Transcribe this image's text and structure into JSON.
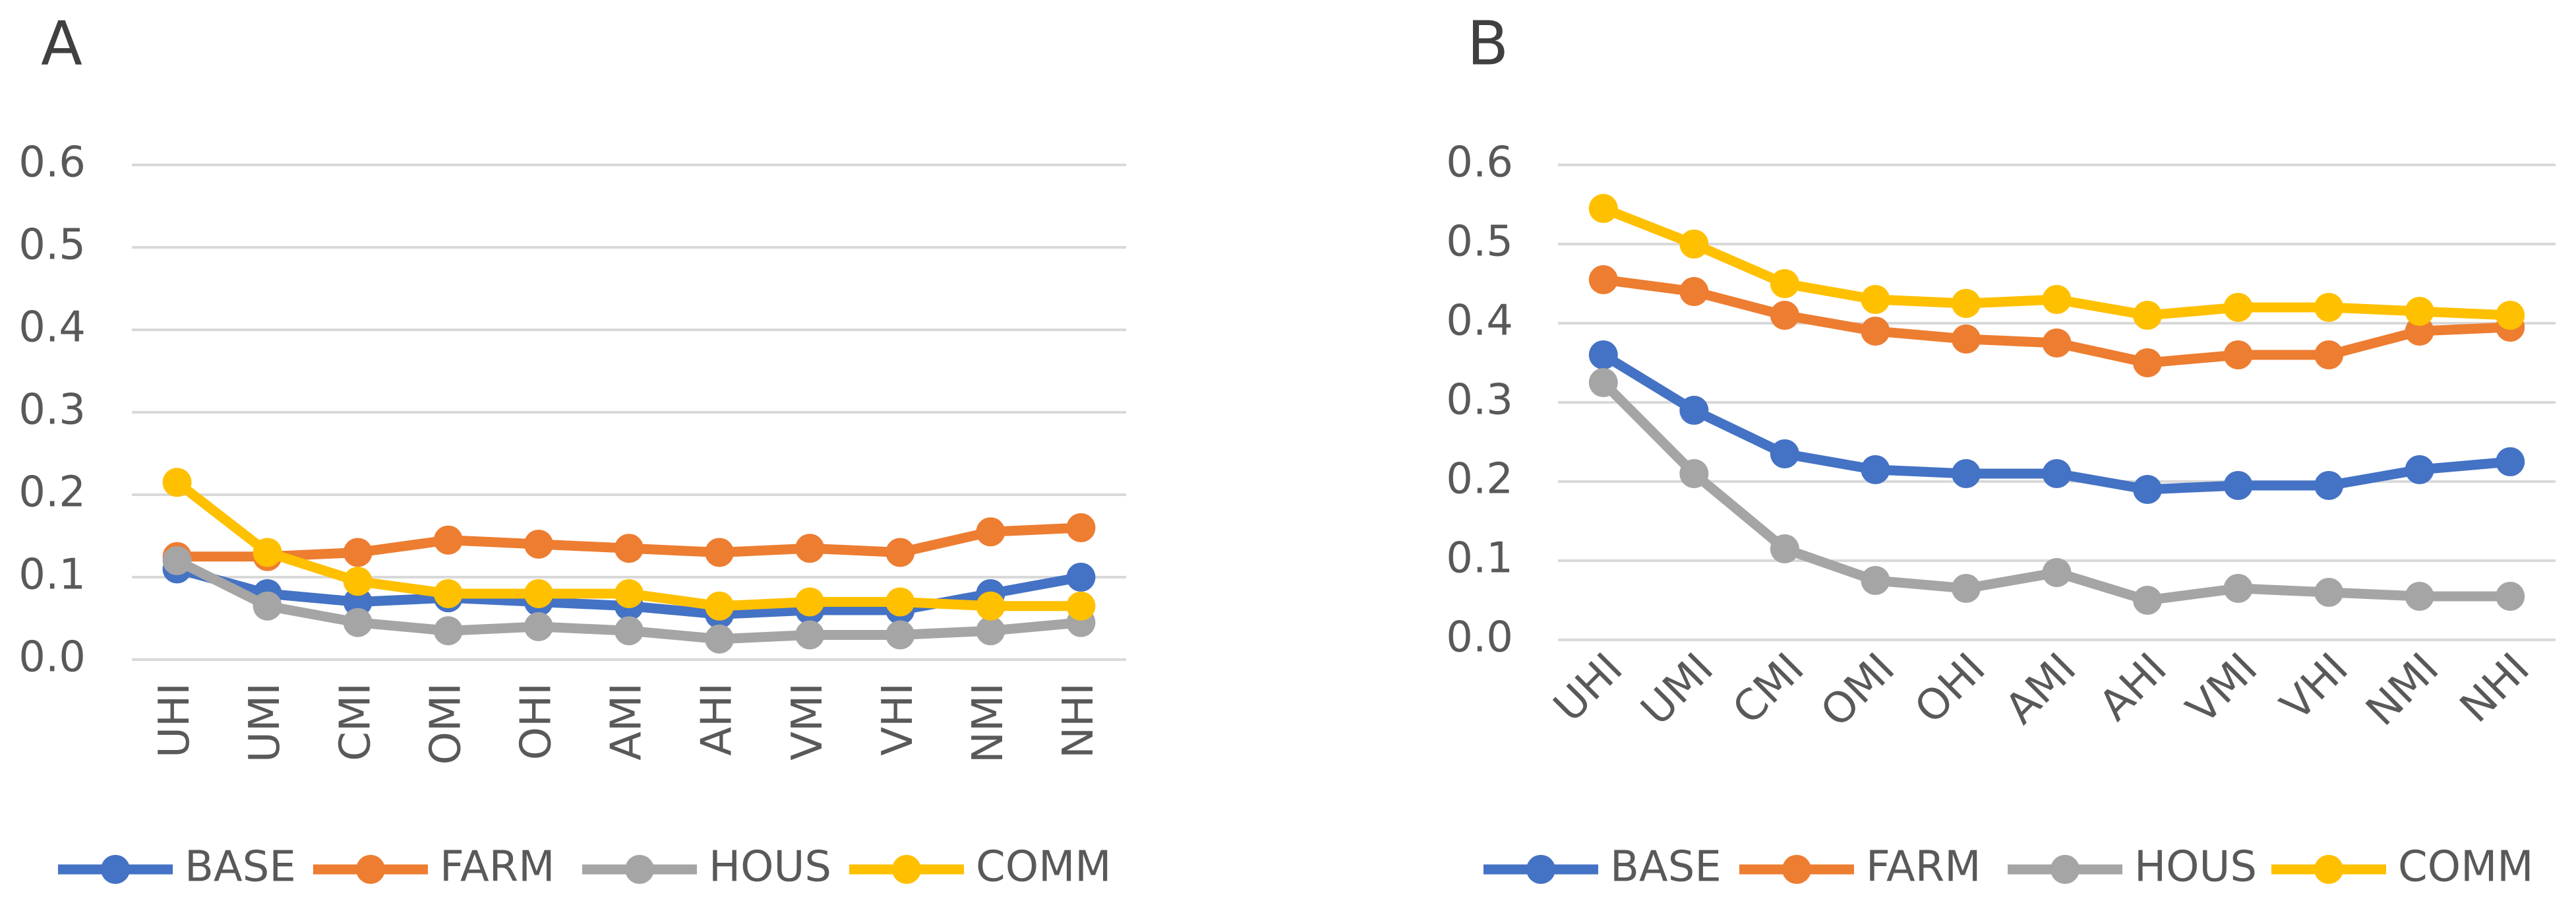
{
  "chart_data": [
    {
      "type": "line",
      "title": "A",
      "categories": [
        "UHI",
        "UMI",
        "CMI",
        "OMI",
        "OHI",
        "AMI",
        "AHI",
        "VMI",
        "VHI",
        "NMI",
        "NHI"
      ],
      "series": [
        {
          "name": "BASE",
          "color": "#4472c4",
          "values": [
            0.11,
            0.08,
            0.07,
            0.075,
            0.07,
            0.065,
            0.055,
            0.06,
            0.06,
            0.08,
            0.1
          ]
        },
        {
          "name": "FARM",
          "color": "#ed7d31",
          "values": [
            0.125,
            0.125,
            0.13,
            0.145,
            0.14,
            0.135,
            0.13,
            0.135,
            0.13,
            0.155,
            0.16
          ]
        },
        {
          "name": "HOUS",
          "color": "#a5a5a5",
          "values": [
            0.12,
            0.065,
            0.045,
            0.035,
            0.04,
            0.035,
            0.025,
            0.03,
            0.03,
            0.035,
            0.045
          ]
        },
        {
          "name": "COMM",
          "color": "#ffc000",
          "values": [
            0.215,
            0.13,
            0.095,
            0.08,
            0.08,
            0.08,
            0.065,
            0.07,
            0.07,
            0.065,
            0.065
          ]
        }
      ],
      "ylim": [
        0,
        0.6
      ],
      "yticks": [
        {
          "value": 0,
          "label": "0.0"
        },
        0.1,
        0.2,
        0.3,
        0.4,
        0.5,
        0.6
      ],
      "grid": true,
      "legend": "bottom"
    },
    {
      "type": "line",
      "title": "B",
      "categories": [
        "UHI",
        "UMI",
        "CMI",
        "OMI",
        "OHI",
        "AMI",
        "AHI",
        "VMI",
        "VHI",
        "NMI",
        "NHI"
      ],
      "series": [
        {
          "name": "BASE",
          "color": "#4472c4",
          "values": [
            0.36,
            0.29,
            0.235,
            0.215,
            0.21,
            0.21,
            0.19,
            0.195,
            0.195,
            0.215,
            0.225
          ]
        },
        {
          "name": "FARM",
          "color": "#ed7d31",
          "values": [
            0.455,
            0.44,
            0.41,
            0.39,
            0.38,
            0.375,
            0.35,
            0.36,
            0.36,
            0.39,
            0.395
          ]
        },
        {
          "name": "HOUS",
          "color": "#a5a5a5",
          "values": [
            0.325,
            0.21,
            0.115,
            0.075,
            0.065,
            0.085,
            0.05,
            0.065,
            0.06,
            0.055,
            0.055
          ]
        },
        {
          "name": "COMM",
          "color": "#ffc000",
          "values": [
            0.545,
            0.5,
            0.45,
            0.43,
            0.425,
            0.43,
            0.41,
            0.42,
            0.42,
            0.415,
            0.41
          ]
        }
      ],
      "ylim": [
        0,
        0.6
      ],
      "yticks": [
        {
          "value": 0,
          "label": "0.0"
        },
        0.1,
        0.2,
        0.3,
        0.4,
        0.5,
        0.6
      ],
      "grid": true,
      "legend": "bottom"
    }
  ]
}
